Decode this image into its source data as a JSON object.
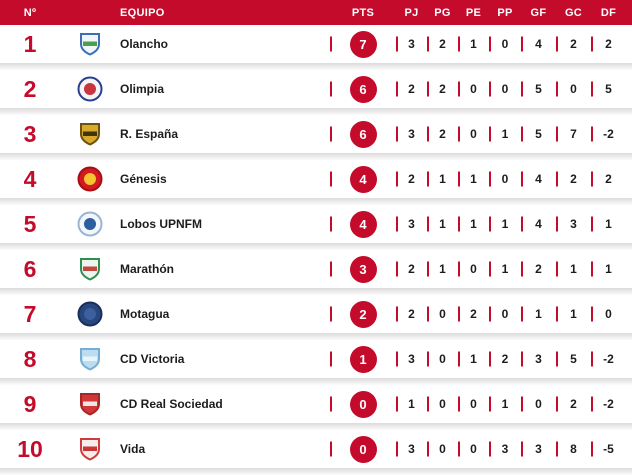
{
  "colors": {
    "accent": "#c40b2c",
    "header_bg": "#c40b2c",
    "row_bg": "#ffffff",
    "text": "#1c1c1c"
  },
  "table": {
    "headers": {
      "position": "Nº",
      "team": "EQUIPO",
      "points": "PTS",
      "stats": [
        "PJ",
        "PG",
        "PE",
        "PP",
        "GF",
        "GC",
        "DF"
      ]
    },
    "rows": [
      {
        "position": "1",
        "team": "Olancho",
        "pts": "7",
        "stats": [
          "3",
          "2",
          "1",
          "0",
          "4",
          "2",
          "2"
        ],
        "crest": {
          "shape": "shield",
          "colors": [
            "#f2f6fb",
            "#3a6fb7",
            "#49a14e"
          ]
        }
      },
      {
        "position": "2",
        "team": "Olimpia",
        "pts": "6",
        "stats": [
          "2",
          "2",
          "0",
          "0",
          "5",
          "0",
          "5"
        ],
        "crest": {
          "shape": "circle",
          "colors": [
            "#f5f5f8",
            "#2a3f8f",
            "#c8353f"
          ]
        }
      },
      {
        "position": "3",
        "team": "R. España",
        "pts": "6",
        "stats": [
          "3",
          "2",
          "0",
          "1",
          "5",
          "7",
          "-2"
        ],
        "crest": {
          "shape": "shield",
          "colors": [
            "#d9a92c",
            "#6b520f",
            "#42350b"
          ]
        }
      },
      {
        "position": "4",
        "team": "Génesis",
        "pts": "4",
        "stats": [
          "2",
          "1",
          "1",
          "0",
          "4",
          "2",
          "2"
        ],
        "crest": {
          "shape": "circle",
          "colors": [
            "#d41920",
            "#a50f14",
            "#f6c431"
          ]
        }
      },
      {
        "position": "5",
        "team": "Lobos UPNFM",
        "pts": "4",
        "stats": [
          "3",
          "1",
          "1",
          "1",
          "4",
          "3",
          "1"
        ],
        "crest": {
          "shape": "circle",
          "colors": [
            "#f4f7fa",
            "#9ab4d6",
            "#2c5d9e"
          ]
        }
      },
      {
        "position": "6",
        "team": "Marathón",
        "pts": "3",
        "stats": [
          "2",
          "1",
          "0",
          "1",
          "2",
          "1",
          "1"
        ],
        "crest": {
          "shape": "shield",
          "colors": [
            "#eef5ee",
            "#2f8f4e",
            "#c2483f"
          ]
        }
      },
      {
        "position": "7",
        "team": "Motagua",
        "pts": "2",
        "stats": [
          "2",
          "0",
          "2",
          "0",
          "1",
          "1",
          "0"
        ],
        "crest": {
          "shape": "circle",
          "colors": [
            "#28477e",
            "#182f5c",
            "#3d5f9e"
          ]
        }
      },
      {
        "position": "8",
        "team": "CD Victoria",
        "pts": "1",
        "stats": [
          "3",
          "0",
          "1",
          "2",
          "3",
          "5",
          "-2"
        ],
        "crest": {
          "shape": "shield",
          "colors": [
            "#bcdcf0",
            "#74aed6",
            "#e9f4fb"
          ]
        }
      },
      {
        "position": "9",
        "team": "CD Real Sociedad",
        "pts": "0",
        "stats": [
          "1",
          "0",
          "0",
          "1",
          "0",
          "2",
          "-2"
        ],
        "crest": {
          "shape": "shield",
          "colors": [
            "#d23737",
            "#a52828",
            "#f0e6e6"
          ]
        }
      },
      {
        "position": "10",
        "team": "Vida",
        "pts": "0",
        "stats": [
          "3",
          "0",
          "0",
          "3",
          "3",
          "8",
          "-5"
        ],
        "crest": {
          "shape": "shield",
          "colors": [
            "#f5eded",
            "#cf3a3a",
            "#c93535"
          ]
        }
      }
    ]
  }
}
